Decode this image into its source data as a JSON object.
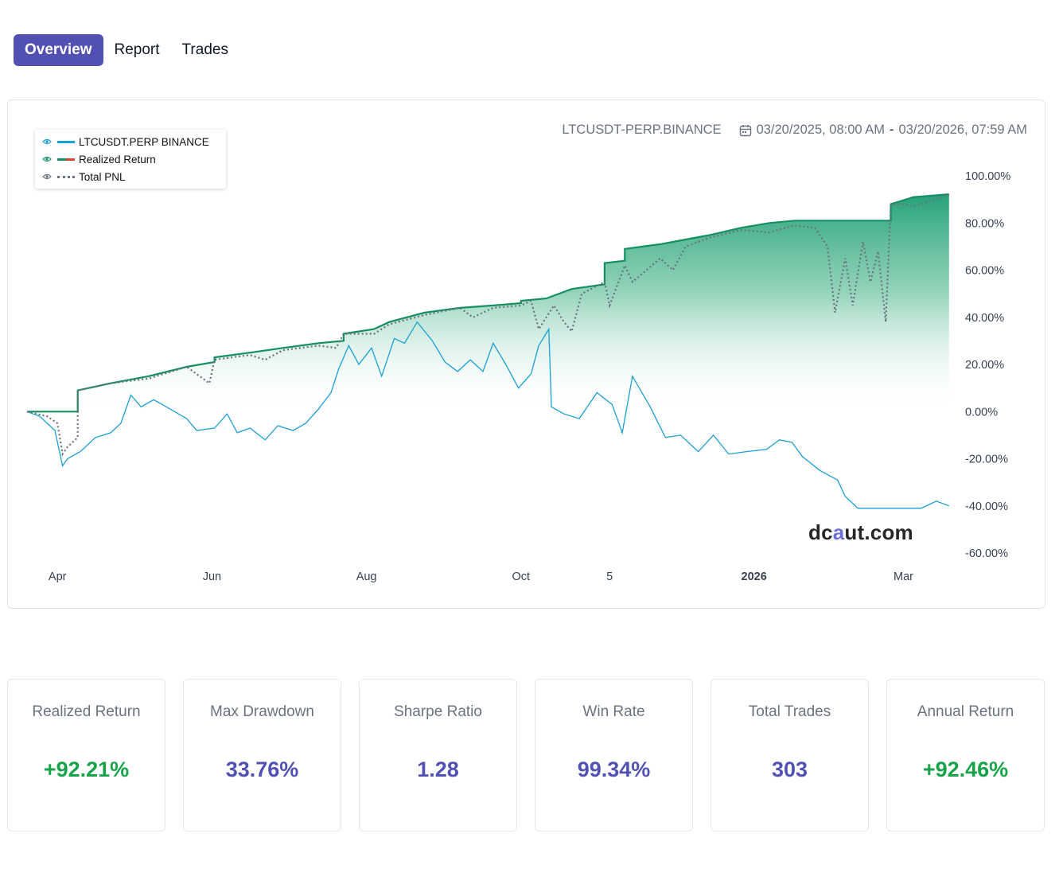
{
  "tabs": [
    {
      "label": "Overview",
      "active": true
    },
    {
      "label": "Report",
      "active": false
    },
    {
      "label": "Trades",
      "active": false
    }
  ],
  "chart_header": {
    "symbol": "LTCUSDT-PERP.BINANCE",
    "range_start": "03/20/2025, 08:00 AM",
    "range_sep": "-",
    "range_end": "03/20/2026, 07:59 AM"
  },
  "watermark": {
    "a": "dc",
    "b": "a",
    "c": "ut.com"
  },
  "colors": {
    "accent": "#5151b4",
    "benchmark": "#1a9fd6",
    "realized": "#14905f",
    "pnl": "#6b7280",
    "positive": "#17a34a"
  },
  "chart_data": {
    "type": "line",
    "series": [
      {
        "name": "LTCUSDT.PERP BINANCE",
        "style": "solid",
        "color": "#1a9fd6",
        "points": [
          [
            "2025-03-20",
            0
          ],
          [
            "2025-03-25",
            -2
          ],
          [
            "2025-03-31",
            -8
          ],
          [
            "2025-04-03",
            -23
          ],
          [
            "2025-04-05",
            -20
          ],
          [
            "2025-04-10",
            -17
          ],
          [
            "2025-04-16",
            -11
          ],
          [
            "2025-04-22",
            -9
          ],
          [
            "2025-04-26",
            -5
          ],
          [
            "2025-04-30",
            7
          ],
          [
            "2025-05-04",
            2
          ],
          [
            "2025-05-09",
            5
          ],
          [
            "2025-05-14",
            2
          ],
          [
            "2025-05-22",
            -3
          ],
          [
            "2025-05-26",
            -8
          ],
          [
            "2025-06-02",
            -7
          ],
          [
            "2025-06-07",
            -1
          ],
          [
            "2025-06-11",
            -9
          ],
          [
            "2025-06-16",
            -7
          ],
          [
            "2025-06-22",
            -12
          ],
          [
            "2025-06-27",
            -6
          ],
          [
            "2025-07-03",
            -8
          ],
          [
            "2025-07-08",
            -5
          ],
          [
            "2025-07-13",
            1
          ],
          [
            "2025-07-18",
            8
          ],
          [
            "2025-07-21",
            18
          ],
          [
            "2025-07-25",
            28
          ],
          [
            "2025-07-29",
            20
          ],
          [
            "2025-08-03",
            27
          ],
          [
            "2025-08-07",
            15
          ],
          [
            "2025-08-12",
            31
          ],
          [
            "2025-08-16",
            29
          ],
          [
            "2025-08-21",
            38
          ],
          [
            "2025-08-27",
            30
          ],
          [
            "2025-09-01",
            21
          ],
          [
            "2025-09-06",
            17
          ],
          [
            "2025-09-11",
            22
          ],
          [
            "2025-09-16",
            17
          ],
          [
            "2025-09-20",
            29
          ],
          [
            "2025-09-25",
            20
          ],
          [
            "2025-09-30",
            10
          ],
          [
            "2025-10-05",
            16
          ],
          [
            "2025-10-08",
            28
          ],
          [
            "2025-10-12",
            35
          ],
          [
            "2025-10-13",
            2
          ],
          [
            "2025-10-18",
            -1
          ],
          [
            "2025-10-24",
            -3
          ],
          [
            "2025-10-31",
            8
          ],
          [
            "2025-11-06",
            3
          ],
          [
            "2025-11-10",
            -9
          ],
          [
            "2025-11-14",
            15
          ],
          [
            "2025-11-21",
            2
          ],
          [
            "2025-11-27",
            -11
          ],
          [
            "2025-12-03",
            -10
          ],
          [
            "2025-12-10",
            -17
          ],
          [
            "2025-12-16",
            -10
          ],
          [
            "2025-12-22",
            -18
          ],
          [
            "2025-12-29",
            -17
          ],
          [
            "2026-01-06",
            -16
          ],
          [
            "2026-01-11",
            -12
          ],
          [
            "2026-01-16",
            -13
          ],
          [
            "2026-01-20",
            -19
          ],
          [
            "2026-01-27",
            -25
          ],
          [
            "2026-02-03",
            -29
          ],
          [
            "2026-02-06",
            -36
          ],
          [
            "2026-02-11",
            -41
          ],
          [
            "2026-02-19",
            -41
          ],
          [
            "2026-02-28",
            -41
          ],
          [
            "2026-03-08",
            -41
          ],
          [
            "2026-03-14",
            -38
          ],
          [
            "2026-03-19",
            -40
          ]
        ]
      },
      {
        "name": "Realized Return",
        "style": "solid",
        "color": "#14905f",
        "points": [
          [
            "2025-03-20",
            0
          ],
          [
            "2025-04-09",
            0
          ],
          [
            "2025-04-09",
            9
          ],
          [
            "2025-04-22",
            12
          ],
          [
            "2025-05-07",
            15
          ],
          [
            "2025-05-22",
            19
          ],
          [
            "2025-06-02",
            21
          ],
          [
            "2025-06-02",
            23
          ],
          [
            "2025-06-16",
            25
          ],
          [
            "2025-06-29",
            27
          ],
          [
            "2025-07-13",
            29
          ],
          [
            "2025-07-23",
            30
          ],
          [
            "2025-07-23",
            33
          ],
          [
            "2025-08-04",
            35
          ],
          [
            "2025-08-10",
            38
          ],
          [
            "2025-08-24",
            42
          ],
          [
            "2025-09-07",
            44
          ],
          [
            "2025-09-20",
            45
          ],
          [
            "2025-10-01",
            46
          ],
          [
            "2025-10-01",
            47
          ],
          [
            "2025-10-11",
            48
          ],
          [
            "2025-10-21",
            52
          ],
          [
            "2025-11-03",
            54
          ],
          [
            "2025-11-03",
            63
          ],
          [
            "2025-11-11",
            64
          ],
          [
            "2025-11-11",
            69
          ],
          [
            "2025-11-25",
            71
          ],
          [
            "2025-12-05",
            73
          ],
          [
            "2025-12-15",
            75
          ],
          [
            "2025-12-27",
            78
          ],
          [
            "2026-01-07",
            80
          ],
          [
            "2026-01-17",
            81
          ],
          [
            "2026-02-24",
            81
          ],
          [
            "2026-02-24",
            88
          ],
          [
            "2026-03-05",
            91
          ],
          [
            "2026-03-19",
            92.21
          ]
        ]
      },
      {
        "name": "Total PNL",
        "style": "dotted",
        "color": "#6b7280",
        "points": [
          [
            "2025-03-20",
            0
          ],
          [
            "2025-03-28",
            -2
          ],
          [
            "2025-04-01",
            -5
          ],
          [
            "2025-04-03",
            -18
          ],
          [
            "2025-04-05",
            -15
          ],
          [
            "2025-04-09",
            -11
          ],
          [
            "2025-04-09",
            9
          ],
          [
            "2025-04-22",
            12
          ],
          [
            "2025-05-07",
            14
          ],
          [
            "2025-05-22",
            19
          ],
          [
            "2025-05-31",
            12
          ],
          [
            "2025-06-02",
            22
          ],
          [
            "2025-06-16",
            24
          ],
          [
            "2025-06-22",
            22
          ],
          [
            "2025-06-29",
            26
          ],
          [
            "2025-07-13",
            28
          ],
          [
            "2025-07-20",
            27
          ],
          [
            "2025-07-23",
            33
          ],
          [
            "2025-08-04",
            33
          ],
          [
            "2025-08-10",
            37
          ],
          [
            "2025-08-24",
            41
          ],
          [
            "2025-09-07",
            44
          ],
          [
            "2025-09-12",
            40
          ],
          [
            "2025-09-20",
            44
          ],
          [
            "2025-10-01",
            45
          ],
          [
            "2025-10-05",
            47
          ],
          [
            "2025-10-08",
            35
          ],
          [
            "2025-10-14",
            45
          ],
          [
            "2025-10-18",
            38
          ],
          [
            "2025-10-21",
            34
          ],
          [
            "2025-10-25",
            50
          ],
          [
            "2025-11-03",
            55
          ],
          [
            "2025-11-05",
            45
          ],
          [
            "2025-11-11",
            62
          ],
          [
            "2025-11-14",
            55
          ],
          [
            "2025-11-25",
            65
          ],
          [
            "2025-11-30",
            60
          ],
          [
            "2025-12-05",
            70
          ],
          [
            "2025-12-15",
            74
          ],
          [
            "2025-12-27",
            77
          ],
          [
            "2026-01-07",
            76
          ],
          [
            "2026-01-17",
            79
          ],
          [
            "2026-01-25",
            78
          ],
          [
            "2026-01-30",
            70
          ],
          [
            "2026-02-02",
            42
          ],
          [
            "2026-02-06",
            65
          ],
          [
            "2026-02-09",
            45
          ],
          [
            "2026-02-13",
            72
          ],
          [
            "2026-02-16",
            55
          ],
          [
            "2026-02-19",
            68
          ],
          [
            "2026-02-22",
            38
          ],
          [
            "2026-02-24",
            88
          ],
          [
            "2026-03-02",
            88
          ],
          [
            "2026-03-05",
            87
          ],
          [
            "2026-03-19",
            92
          ]
        ]
      }
    ],
    "x_range": [
      "2025-03-20",
      "2026-03-20"
    ],
    "x_ticks": [
      {
        "label": "Apr",
        "date": "2025-04-01",
        "bold": false
      },
      {
        "label": "Jun",
        "date": "2025-06-01",
        "bold": false
      },
      {
        "label": "Aug",
        "date": "2025-08-01",
        "bold": false
      },
      {
        "label": "Oct",
        "date": "2025-10-01",
        "bold": false
      },
      {
        "label": "5",
        "date": "2025-11-05",
        "bold": false
      },
      {
        "label": "2026",
        "date": "2026-01-01",
        "bold": true
      },
      {
        "label": "Mar",
        "date": "2026-03-01",
        "bold": false
      }
    ],
    "y_ticks": [
      {
        "value": 100,
        "label": "100.00%"
      },
      {
        "value": 80,
        "label": "80.00%"
      },
      {
        "value": 60,
        "label": "60.00%"
      },
      {
        "value": 40,
        "label": "40.00%"
      },
      {
        "value": 20,
        "label": "20.00%"
      },
      {
        "value": 0,
        "label": "0.00%"
      },
      {
        "value": -20,
        "label": "-20.00%"
      },
      {
        "value": -40,
        "label": "-40.00%"
      },
      {
        "value": -60,
        "label": "-60.00%"
      }
    ],
    "ylim": [
      -60,
      100
    ],
    "legend_position": "top-left",
    "area_fill_series": "Realized Return",
    "grid": false
  },
  "metrics": [
    {
      "label": "Realized Return",
      "value": "+92.21%",
      "tone": "pos"
    },
    {
      "label": "Max Drawdown",
      "value": "33.76%",
      "tone": "neu"
    },
    {
      "label": "Sharpe Ratio",
      "value": "1.28",
      "tone": "neu"
    },
    {
      "label": "Win Rate",
      "value": "99.34%",
      "tone": "neu"
    },
    {
      "label": "Total Trades",
      "value": "303",
      "tone": "neu"
    },
    {
      "label": "Annual Return",
      "value": "+92.46%",
      "tone": "pos"
    }
  ]
}
